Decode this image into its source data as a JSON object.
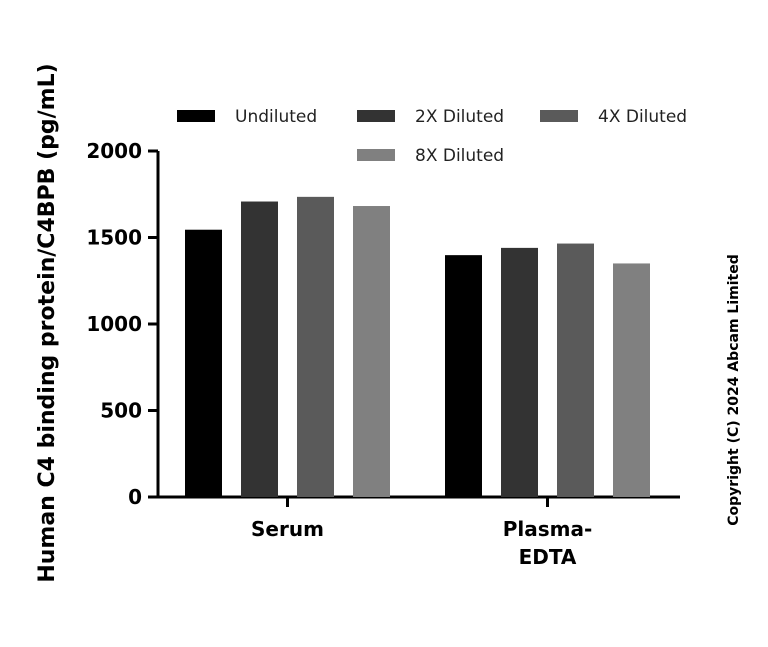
{
  "chart_data": {
    "type": "bar",
    "ylabel": "Human C4 binding protein/C4BPB (pg/mL)",
    "xlabel": "",
    "ylim": [
      0,
      2000
    ],
    "yticks": [
      "0",
      "500",
      "1000",
      "1500",
      "2000"
    ],
    "categories": [
      [
        "Serum"
      ],
      [
        "Plasma-",
        "EDTA"
      ]
    ],
    "series": [
      {
        "name": "Undiluted",
        "color": "#000000",
        "values": [
          1545,
          1398
        ]
      },
      {
        "name": "2X Diluted",
        "color": "#333333",
        "values": [
          1708,
          1440
        ]
      },
      {
        "name": "4X Diluted",
        "color": "#5a5a5a",
        "values": [
          1735,
          1465
        ]
      },
      {
        "name": "8X Diluted",
        "color": "#808080",
        "values": [
          1682,
          1350
        ]
      }
    ],
    "legend_position": "top",
    "grid": false
  },
  "copyright": "Copyright (C) 2024 Abcam Limited"
}
